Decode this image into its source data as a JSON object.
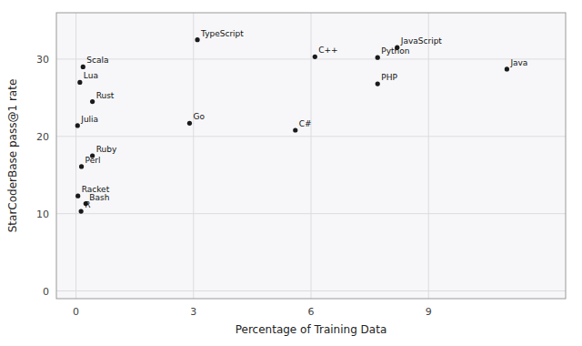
{
  "chart_data": {
    "type": "scatter",
    "x_label": "Percentage of Training Data",
    "y_label": "StarCoderBase pass@1 rate",
    "annotations": [
      "TypeScript",
      "JavaScript",
      "Python",
      "C++",
      "Java",
      "Scala",
      "Lua",
      "PHP",
      "Rust",
      "Go",
      "Julia",
      "C#",
      "Ruby",
      "Perl",
      "Racket",
      "Bash",
      "R"
    ],
    "x": [
      3.1,
      8.2,
      7.7,
      6.1,
      11.0,
      0.18,
      0.1,
      7.7,
      0.42,
      2.9,
      0.04,
      5.6,
      0.42,
      0.14,
      0.05,
      0.25,
      0.13
    ],
    "values": [
      32.5,
      31.5,
      30.2,
      30.3,
      28.7,
      29.0,
      27.0,
      26.8,
      24.5,
      21.7,
      21.4,
      20.8,
      17.5,
      16.1,
      12.3,
      11.3,
      10.3
    ],
    "color": "#1a1a1a",
    "xlim": [
      -0.5,
      12.5
    ],
    "ylim": [
      -1,
      36
    ],
    "xticks": [
      0,
      3,
      6,
      9
    ],
    "yticks": [
      0,
      10,
      20,
      30
    ],
    "grid": true
  }
}
